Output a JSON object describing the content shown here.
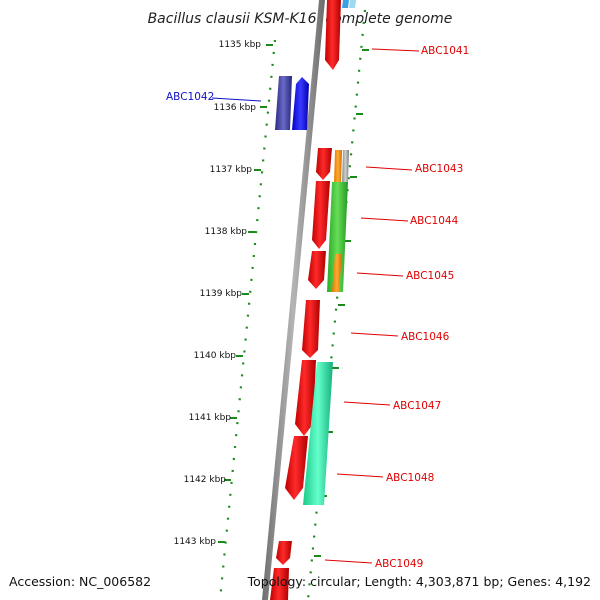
{
  "title": "Bacillus clausii KSM-K16, complete genome",
  "scale_labels": [
    "1135 kbp",
    "1136 kbp",
    "1137 kbp",
    "1138 kbp",
    "1139 kbp",
    "1140 kbp",
    "1141 kbp",
    "1142 kbp",
    "1143 kbp"
  ],
  "genes": [
    {
      "label": "ABC1041",
      "strand": "minus",
      "color": "#e00000"
    },
    {
      "label": "ABC1042",
      "strand": "plus",
      "color": "#1010c8"
    },
    {
      "label": "ABC1043",
      "strand": "minus",
      "color": "#e00000"
    },
    {
      "label": "ABC1044",
      "strand": "minus",
      "color": "#e00000"
    },
    {
      "label": "ABC1045",
      "strand": "minus",
      "color": "#e00000"
    },
    {
      "label": "ABC1046",
      "strand": "minus",
      "color": "#e00000"
    },
    {
      "label": "ABC1047",
      "strand": "minus",
      "color": "#e00000"
    },
    {
      "label": "ABC1048",
      "strand": "minus",
      "color": "#e00000"
    },
    {
      "label": "ABC1049",
      "strand": "minus",
      "color": "#e00000"
    }
  ],
  "footer": {
    "accession": "Accession: NC_006582",
    "summary": "Topology: circular; Length: 4,303,871 bp; Genes: 4,192"
  }
}
